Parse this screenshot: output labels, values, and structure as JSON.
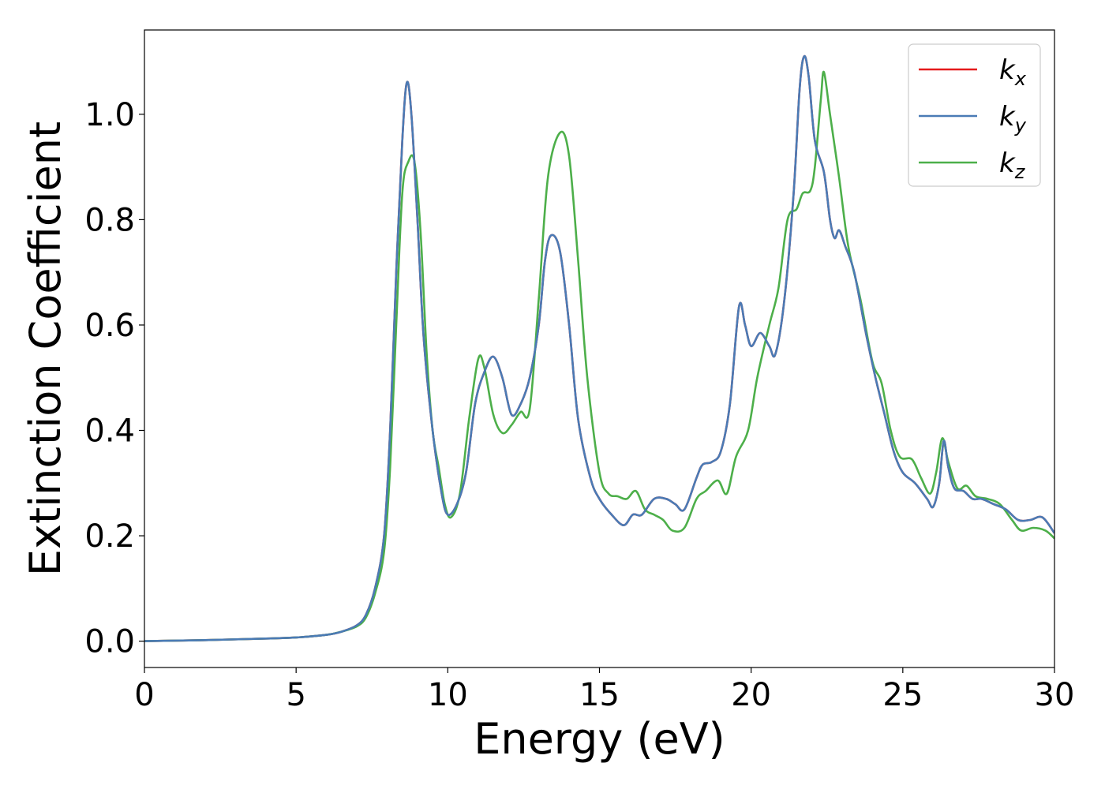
{
  "chart_data": {
    "type": "line",
    "xlabel": "Energy (eV)",
    "ylabel": "Extinction Coefficient",
    "xlim": [
      0,
      30
    ],
    "ylim": [
      -0.05,
      1.16
    ],
    "xticks": [
      0,
      5,
      10,
      15,
      20,
      25,
      30
    ],
    "xtick_labels": [
      "0",
      "5",
      "10",
      "15",
      "20",
      "25",
      "30"
    ],
    "yticks": [
      0.0,
      0.2,
      0.4,
      0.6,
      0.8,
      1.0
    ],
    "ytick_labels": [
      "0.0",
      "0.2",
      "0.4",
      "0.6",
      "0.8",
      "1.0"
    ],
    "grid": false,
    "legend_position": "top-right",
    "series": [
      {
        "name": "k_x",
        "label_main": "k",
        "label_sub": "x",
        "color": "#e41a1c",
        "points": [
          [
            0,
            0.0
          ],
          [
            2,
            0.002
          ],
          [
            4,
            0.005
          ],
          [
            5,
            0.007
          ],
          [
            6,
            0.012
          ],
          [
            6.5,
            0.018
          ],
          [
            7,
            0.03
          ],
          [
            7.3,
            0.05
          ],
          [
            7.6,
            0.1
          ],
          [
            7.9,
            0.2
          ],
          [
            8.1,
            0.4
          ],
          [
            8.3,
            0.7
          ],
          [
            8.5,
            0.95
          ],
          [
            8.65,
            1.06
          ],
          [
            8.8,
            1.0
          ],
          [
            9.0,
            0.8
          ],
          [
            9.2,
            0.58
          ],
          [
            9.5,
            0.4
          ],
          [
            9.8,
            0.28
          ],
          [
            10.0,
            0.24
          ],
          [
            10.3,
            0.26
          ],
          [
            10.6,
            0.32
          ],
          [
            10.9,
            0.45
          ],
          [
            11.2,
            0.51
          ],
          [
            11.5,
            0.54
          ],
          [
            11.8,
            0.5
          ],
          [
            12.1,
            0.43
          ],
          [
            12.4,
            0.45
          ],
          [
            12.7,
            0.5
          ],
          [
            13.0,
            0.6
          ],
          [
            13.2,
            0.72
          ],
          [
            13.4,
            0.77
          ],
          [
            13.7,
            0.74
          ],
          [
            14.0,
            0.6
          ],
          [
            14.3,
            0.42
          ],
          [
            14.7,
            0.31
          ],
          [
            15.0,
            0.27
          ],
          [
            15.4,
            0.24
          ],
          [
            15.8,
            0.22
          ],
          [
            16.1,
            0.24
          ],
          [
            16.4,
            0.24
          ],
          [
            16.8,
            0.27
          ],
          [
            17.2,
            0.27
          ],
          [
            17.5,
            0.26
          ],
          [
            17.8,
            0.25
          ],
          [
            18.2,
            0.31
          ],
          [
            18.4,
            0.335
          ],
          [
            18.7,
            0.34
          ],
          [
            19.0,
            0.36
          ],
          [
            19.3,
            0.45
          ],
          [
            19.6,
            0.635
          ],
          [
            19.8,
            0.6
          ],
          [
            20.0,
            0.56
          ],
          [
            20.3,
            0.585
          ],
          [
            20.6,
            0.56
          ],
          [
            20.8,
            0.545
          ],
          [
            21.1,
            0.65
          ],
          [
            21.4,
            0.85
          ],
          [
            21.6,
            1.05
          ],
          [
            21.75,
            1.11
          ],
          [
            21.9,
            1.07
          ],
          [
            22.1,
            0.95
          ],
          [
            22.4,
            0.89
          ],
          [
            22.6,
            0.8
          ],
          [
            22.75,
            0.765
          ],
          [
            22.9,
            0.78
          ],
          [
            23.1,
            0.75
          ],
          [
            23.4,
            0.7
          ],
          [
            23.8,
            0.58
          ],
          [
            24.1,
            0.5
          ],
          [
            24.4,
            0.43
          ],
          [
            24.7,
            0.36
          ],
          [
            25.0,
            0.32
          ],
          [
            25.4,
            0.3
          ],
          [
            25.8,
            0.27
          ],
          [
            26.0,
            0.255
          ],
          [
            26.2,
            0.3
          ],
          [
            26.35,
            0.38
          ],
          [
            26.5,
            0.33
          ],
          [
            26.7,
            0.29
          ],
          [
            27.0,
            0.285
          ],
          [
            27.3,
            0.27
          ],
          [
            27.6,
            0.27
          ],
          [
            28.0,
            0.26
          ],
          [
            28.4,
            0.25
          ],
          [
            28.8,
            0.23
          ],
          [
            29.2,
            0.23
          ],
          [
            29.6,
            0.235
          ],
          [
            30,
            0.205
          ]
        ]
      },
      {
        "name": "k_y",
        "label_main": "k",
        "label_sub": "y",
        "color": "#4a7bb5",
        "points": [
          [
            0,
            0.0
          ],
          [
            2,
            0.002
          ],
          [
            4,
            0.005
          ],
          [
            5,
            0.007
          ],
          [
            6,
            0.012
          ],
          [
            6.5,
            0.018
          ],
          [
            7,
            0.03
          ],
          [
            7.3,
            0.05
          ],
          [
            7.6,
            0.1
          ],
          [
            7.9,
            0.2
          ],
          [
            8.1,
            0.4
          ],
          [
            8.3,
            0.7
          ],
          [
            8.5,
            0.95
          ],
          [
            8.65,
            1.06
          ],
          [
            8.8,
            1.0
          ],
          [
            9.0,
            0.8
          ],
          [
            9.2,
            0.58
          ],
          [
            9.5,
            0.4
          ],
          [
            9.8,
            0.28
          ],
          [
            10.0,
            0.24
          ],
          [
            10.3,
            0.26
          ],
          [
            10.6,
            0.32
          ],
          [
            10.9,
            0.45
          ],
          [
            11.2,
            0.51
          ],
          [
            11.5,
            0.54
          ],
          [
            11.8,
            0.5
          ],
          [
            12.1,
            0.43
          ],
          [
            12.4,
            0.45
          ],
          [
            12.7,
            0.5
          ],
          [
            13.0,
            0.6
          ],
          [
            13.2,
            0.72
          ],
          [
            13.4,
            0.77
          ],
          [
            13.7,
            0.74
          ],
          [
            14.0,
            0.6
          ],
          [
            14.3,
            0.42
          ],
          [
            14.7,
            0.31
          ],
          [
            15.0,
            0.27
          ],
          [
            15.4,
            0.24
          ],
          [
            15.8,
            0.22
          ],
          [
            16.1,
            0.24
          ],
          [
            16.4,
            0.24
          ],
          [
            16.8,
            0.27
          ],
          [
            17.2,
            0.27
          ],
          [
            17.5,
            0.26
          ],
          [
            17.8,
            0.25
          ],
          [
            18.2,
            0.31
          ],
          [
            18.4,
            0.335
          ],
          [
            18.7,
            0.34
          ],
          [
            19.0,
            0.36
          ],
          [
            19.3,
            0.45
          ],
          [
            19.6,
            0.635
          ],
          [
            19.8,
            0.6
          ],
          [
            20.0,
            0.56
          ],
          [
            20.3,
            0.585
          ],
          [
            20.6,
            0.56
          ],
          [
            20.8,
            0.545
          ],
          [
            21.1,
            0.65
          ],
          [
            21.4,
            0.85
          ],
          [
            21.6,
            1.05
          ],
          [
            21.75,
            1.11
          ],
          [
            21.9,
            1.07
          ],
          [
            22.1,
            0.95
          ],
          [
            22.4,
            0.89
          ],
          [
            22.6,
            0.8
          ],
          [
            22.75,
            0.765
          ],
          [
            22.9,
            0.78
          ],
          [
            23.1,
            0.75
          ],
          [
            23.4,
            0.7
          ],
          [
            23.8,
            0.58
          ],
          [
            24.1,
            0.5
          ],
          [
            24.4,
            0.43
          ],
          [
            24.7,
            0.36
          ],
          [
            25.0,
            0.32
          ],
          [
            25.4,
            0.3
          ],
          [
            25.8,
            0.27
          ],
          [
            26.0,
            0.255
          ],
          [
            26.2,
            0.3
          ],
          [
            26.35,
            0.38
          ],
          [
            26.5,
            0.33
          ],
          [
            26.7,
            0.29
          ],
          [
            27.0,
            0.285
          ],
          [
            27.3,
            0.27
          ],
          [
            27.6,
            0.27
          ],
          [
            28.0,
            0.26
          ],
          [
            28.4,
            0.25
          ],
          [
            28.8,
            0.23
          ],
          [
            29.2,
            0.23
          ],
          [
            29.6,
            0.235
          ],
          [
            30,
            0.205
          ]
        ]
      },
      {
        "name": "k_z",
        "label_main": "k",
        "label_sub": "z",
        "color": "#4daf4a",
        "points": [
          [
            0,
            0.0
          ],
          [
            2,
            0.002
          ],
          [
            4,
            0.005
          ],
          [
            5,
            0.007
          ],
          [
            6,
            0.012
          ],
          [
            6.5,
            0.018
          ],
          [
            7,
            0.028
          ],
          [
            7.3,
            0.045
          ],
          [
            7.6,
            0.09
          ],
          [
            7.9,
            0.17
          ],
          [
            8.1,
            0.33
          ],
          [
            8.3,
            0.6
          ],
          [
            8.5,
            0.85
          ],
          [
            8.7,
            0.91
          ],
          [
            8.9,
            0.91
          ],
          [
            9.1,
            0.78
          ],
          [
            9.3,
            0.55
          ],
          [
            9.5,
            0.4
          ],
          [
            9.7,
            0.33
          ],
          [
            9.9,
            0.26
          ],
          [
            10.1,
            0.235
          ],
          [
            10.4,
            0.28
          ],
          [
            10.7,
            0.42
          ],
          [
            11.0,
            0.535
          ],
          [
            11.2,
            0.52
          ],
          [
            11.5,
            0.43
          ],
          [
            11.8,
            0.395
          ],
          [
            12.1,
            0.41
          ],
          [
            12.4,
            0.435
          ],
          [
            12.7,
            0.44
          ],
          [
            13.0,
            0.65
          ],
          [
            13.3,
            0.88
          ],
          [
            13.7,
            0.965
          ],
          [
            14.0,
            0.92
          ],
          [
            14.3,
            0.72
          ],
          [
            14.6,
            0.5
          ],
          [
            15.0,
            0.32
          ],
          [
            15.3,
            0.28
          ],
          [
            15.6,
            0.275
          ],
          [
            15.9,
            0.27
          ],
          [
            16.2,
            0.285
          ],
          [
            16.5,
            0.25
          ],
          [
            16.8,
            0.24
          ],
          [
            17.1,
            0.23
          ],
          [
            17.4,
            0.21
          ],
          [
            17.8,
            0.215
          ],
          [
            18.2,
            0.27
          ],
          [
            18.5,
            0.285
          ],
          [
            18.9,
            0.305
          ],
          [
            19.2,
            0.28
          ],
          [
            19.5,
            0.35
          ],
          [
            19.9,
            0.4
          ],
          [
            20.2,
            0.5
          ],
          [
            20.6,
            0.6
          ],
          [
            20.9,
            0.67
          ],
          [
            21.2,
            0.8
          ],
          [
            21.5,
            0.82
          ],
          [
            21.7,
            0.85
          ],
          [
            21.95,
            0.855
          ],
          [
            22.1,
            0.9
          ],
          [
            22.3,
            1.03
          ],
          [
            22.4,
            1.08
          ],
          [
            22.6,
            1.0
          ],
          [
            22.9,
            0.88
          ],
          [
            23.2,
            0.75
          ],
          [
            23.6,
            0.65
          ],
          [
            24.0,
            0.53
          ],
          [
            24.3,
            0.49
          ],
          [
            24.6,
            0.4
          ],
          [
            24.9,
            0.35
          ],
          [
            25.3,
            0.345
          ],
          [
            25.6,
            0.31
          ],
          [
            25.9,
            0.28
          ],
          [
            26.1,
            0.32
          ],
          [
            26.3,
            0.385
          ],
          [
            26.5,
            0.34
          ],
          [
            26.8,
            0.29
          ],
          [
            27.1,
            0.295
          ],
          [
            27.4,
            0.275
          ],
          [
            27.8,
            0.27
          ],
          [
            28.2,
            0.26
          ],
          [
            28.6,
            0.23
          ],
          [
            28.9,
            0.21
          ],
          [
            29.3,
            0.215
          ],
          [
            29.7,
            0.21
          ],
          [
            30,
            0.195
          ]
        ]
      }
    ]
  }
}
